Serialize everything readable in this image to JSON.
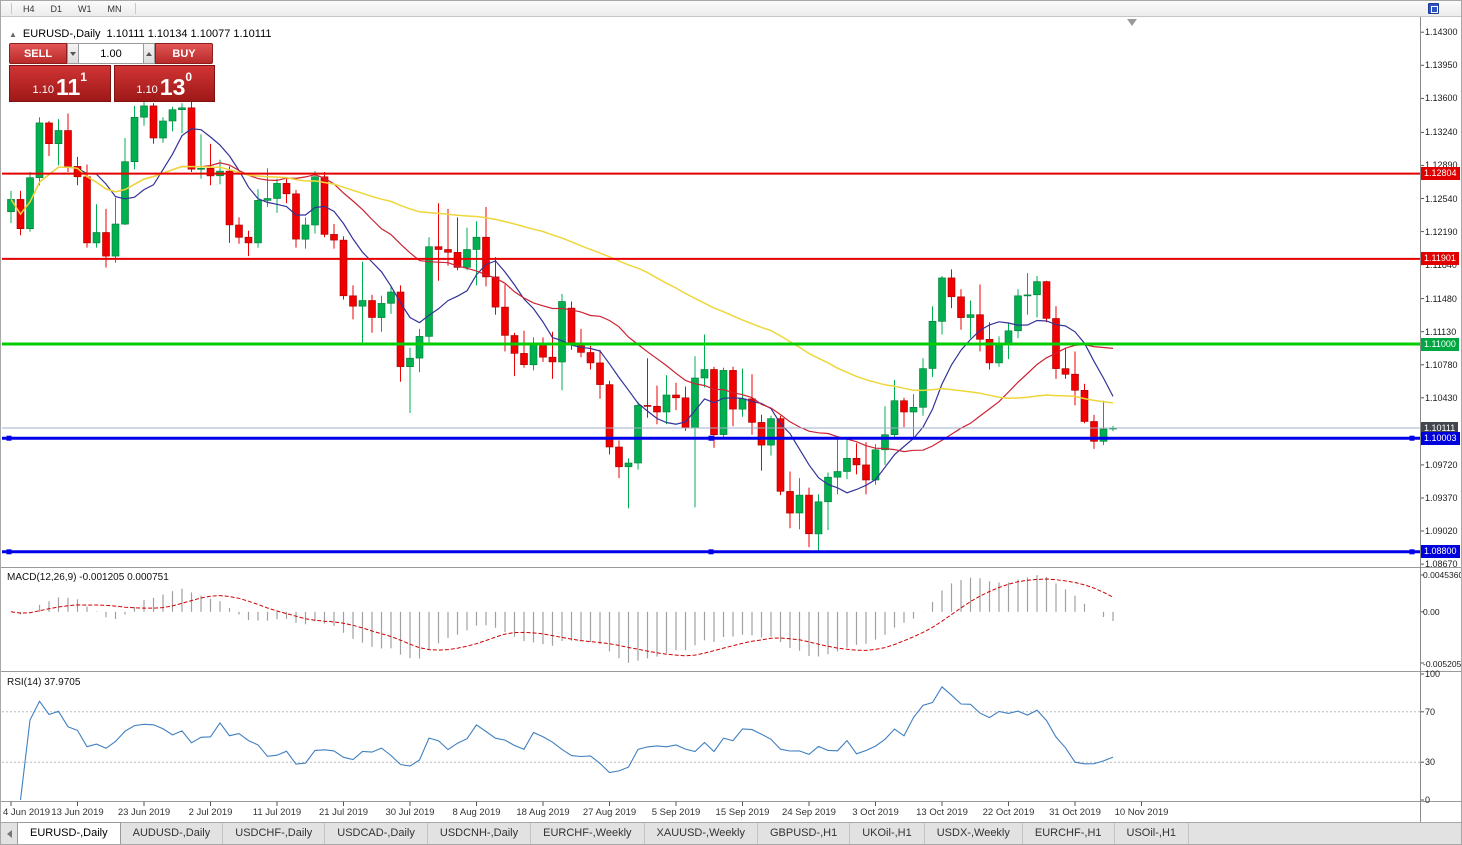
{
  "toolbar": {
    "timeframes": [
      "H4",
      "D1",
      "W1",
      "MN"
    ]
  },
  "chart": {
    "title_symbol": "EURUSD-,Daily",
    "title_ohlc": "1.10111 1.10134 1.10077 1.10111"
  },
  "one_click": {
    "collapse_icon": "▲",
    "sell_label": "SELL",
    "buy_label": "BUY",
    "volume": "1.00",
    "bid_prefix": "1.10",
    "bid_big": "11",
    "bid_pip": "1",
    "ask_prefix": "1.10",
    "ask_big": "13",
    "ask_pip": "0"
  },
  "price_axis": {
    "ticks": [
      "1.14300",
      "1.13950",
      "1.13600",
      "1.13240",
      "1.12890",
      "1.12540",
      "1.12190",
      "1.11840",
      "1.11480",
      "1.11130",
      "1.10780",
      "1.10430",
      "1.10080",
      "1.09720",
      "1.09370",
      "1.09020",
      "1.08670"
    ],
    "tags": [
      {
        "label": "1.12804",
        "price": 1.12804,
        "bg": "#e00000",
        "fg": "#ffffff"
      },
      {
        "label": "1.11901",
        "price": 1.11901,
        "bg": "#e00000",
        "fg": "#ffffff"
      },
      {
        "label": "1.11000",
        "price": 1.11,
        "bg": "#00a843",
        "fg": "#ffffff"
      },
      {
        "label": "1.10111",
        "price": 1.10111,
        "bg": "#42464e",
        "fg": "#ffffff"
      },
      {
        "label": "1.10003",
        "price": 1.10003,
        "bg": "#0000dd",
        "fg": "#ffffff"
      },
      {
        "label": "1.08800",
        "price": 1.088,
        "bg": "#0000dd",
        "fg": "#ffffff"
      }
    ]
  },
  "indicators": {
    "macd": {
      "label": "MACD(12,26,9) -0.001205 0.000751",
      "axis_max": "0.0045360",
      "axis_zero": "0.00",
      "axis_min": "-0.0052050"
    },
    "rsi": {
      "label": "RSI(14) 37.9705",
      "axis": [
        "100",
        "70",
        "30",
        "0"
      ],
      "levels": [
        70,
        30
      ]
    }
  },
  "date_axis": [
    "4 Jun 2019",
    "13 Jun 2019",
    "23 Jun 2019",
    "2 Jul 2019",
    "11 Jul 2019",
    "21 Jul 2019",
    "30 Jul 2019",
    "8 Aug 2019",
    "18 Aug 2019",
    "27 Aug 2019",
    "5 Sep 2019",
    "15 Sep 2019",
    "24 Sep 2019",
    "3 Oct 2019",
    "13 Oct 2019",
    "22 Oct 2019",
    "31 Oct 2019",
    "10 Nov 2019"
  ],
  "tabs": [
    {
      "label": "EURUSD-,Daily",
      "active": true
    },
    {
      "label": "AUDUSD-,Daily",
      "active": false
    },
    {
      "label": "USDCHF-,Daily",
      "active": false
    },
    {
      "label": "USDCAD-,Daily",
      "active": false
    },
    {
      "label": "USDCNH-,Daily",
      "active": false
    },
    {
      "label": "EURCHF-,Weekly",
      "active": false
    },
    {
      "label": "XAUUSD-,Weekly",
      "active": false
    },
    {
      "label": "GBPUSD-,H1",
      "active": false
    },
    {
      "label": "UKOil-,H1",
      "active": false
    },
    {
      "label": "USDX-,Weekly",
      "active": false
    },
    {
      "label": "EURCHF-,H1",
      "active": false
    },
    {
      "label": "USOil-,H1",
      "active": false
    }
  ],
  "chart_data": {
    "type": "candlestick",
    "symbol": "EURUSD-",
    "timeframe": "Daily",
    "title": "EURUSD-,Daily",
    "price_range": [
      1.0865,
      1.1444
    ],
    "bid": 1.10111,
    "last_bar": {
      "open": 1.10111,
      "high": 1.10134,
      "low": 1.10077,
      "close": 1.10111
    },
    "x_labels": [
      "4 Jun 2019",
      "13 Jun 2019",
      "23 Jun 2019",
      "2 Jul 2019",
      "11 Jul 2019",
      "21 Jul 2019",
      "30 Jul 2019",
      "8 Aug 2019",
      "18 Aug 2019",
      "27 Aug 2019",
      "5 Sep 2019",
      "15 Sep 2019",
      "24 Sep 2019",
      "3 Oct 2019",
      "13 Oct 2019",
      "22 Oct 2019",
      "31 Oct 2019",
      "10 Nov 2019"
    ],
    "horizontal_levels": [
      {
        "price": 1.12804,
        "color": "#e40000",
        "width": 2,
        "selected": false
      },
      {
        "price": 1.11901,
        "color": "#e40000",
        "width": 2,
        "selected": false
      },
      {
        "price": 1.11,
        "color": "#00cc00",
        "width": 3,
        "selected": false
      },
      {
        "price": 1.10003,
        "color": "#0000e8",
        "width": 3,
        "selected": true
      },
      {
        "price": 1.088,
        "color": "#0000e8",
        "width": 3,
        "selected": true
      }
    ],
    "ma_fast": 8,
    "ma_mid": 21,
    "ma_slow": 55,
    "macd": {
      "params": "12,26,9",
      "main": -0.001205,
      "signal": 0.000751
    },
    "rsi": {
      "period": 14,
      "value": 37.9705
    },
    "colors": {
      "bull": "#00b050",
      "bull_edge": "#007a36",
      "bear": "#f00000",
      "bear_edge": "#a40000",
      "ma_fast": "#333399",
      "ma_mid": "#cc2233",
      "ma_slow": "#eed73a",
      "macd_hist": "#a0a0a0",
      "macd_signal": "#d00000",
      "rsi": "#4080c0",
      "bid_line": "#9fb0c8"
    },
    "ohlc": [
      [
        1.124,
        1.1262,
        1.1228,
        1.1253
      ],
      [
        1.1253,
        1.1262,
        1.1215,
        1.1222
      ],
      [
        1.1222,
        1.1282,
        1.1219,
        1.1276
      ],
      [
        1.1276,
        1.134,
        1.1268,
        1.1334
      ],
      [
        1.1334,
        1.1336,
        1.1299,
        1.1312
      ],
      [
        1.1312,
        1.1338,
        1.1289,
        1.1326
      ],
      [
        1.1326,
        1.1344,
        1.1282,
        1.1288
      ],
      [
        1.1288,
        1.1298,
        1.1268,
        1.1277
      ],
      [
        1.1277,
        1.129,
        1.1202,
        1.1207
      ],
      [
        1.1207,
        1.1248,
        1.1202,
        1.1218
      ],
      [
        1.1218,
        1.1243,
        1.1181,
        1.1193
      ],
      [
        1.1193,
        1.1255,
        1.1186,
        1.1227
      ],
      [
        1.1227,
        1.1318,
        1.1226,
        1.1293
      ],
      [
        1.1293,
        1.1352,
        1.1285,
        1.134
      ],
      [
        1.134,
        1.1358,
        1.1331,
        1.1352
      ],
      [
        1.1352,
        1.1355,
        1.1312,
        1.1318
      ],
      [
        1.1318,
        1.134,
        1.1313,
        1.1336
      ],
      [
        1.1336,
        1.1351,
        1.1325,
        1.1348
      ],
      [
        1.1348,
        1.1355,
        1.1323,
        1.135
      ],
      [
        1.135,
        1.1358,
        1.1282,
        1.1285
      ],
      [
        1.1285,
        1.1322,
        1.1275,
        1.1286
      ],
      [
        1.1286,
        1.1312,
        1.1268,
        1.1278
      ],
      [
        1.1278,
        1.1295,
        1.1269,
        1.1283
      ],
      [
        1.1283,
        1.1288,
        1.1207,
        1.1226
      ],
      [
        1.1226,
        1.1234,
        1.1206,
        1.1213
      ],
      [
        1.1213,
        1.122,
        1.1193,
        1.1207
      ],
      [
        1.1207,
        1.1264,
        1.1202,
        1.1252
      ],
      [
        1.1252,
        1.1286,
        1.1245,
        1.1254
      ],
      [
        1.1254,
        1.1275,
        1.1239,
        1.127
      ],
      [
        1.127,
        1.1276,
        1.1249,
        1.1259
      ],
      [
        1.1259,
        1.1263,
        1.1202,
        1.1211
      ],
      [
        1.1211,
        1.1234,
        1.1201,
        1.1226
      ],
      [
        1.1226,
        1.1283,
        1.1217,
        1.1277
      ],
      [
        1.1277,
        1.1282,
        1.1213,
        1.1216
      ],
      [
        1.1216,
        1.1227,
        1.1201,
        1.121
      ],
      [
        1.121,
        1.1214,
        1.1147,
        1.1151
      ],
      [
        1.1151,
        1.1162,
        1.1126,
        1.114
      ],
      [
        1.114,
        1.1187,
        1.1101,
        1.1146
      ],
      [
        1.1146,
        1.1152,
        1.1112,
        1.1128
      ],
      [
        1.1128,
        1.1151,
        1.1113,
        1.1143
      ],
      [
        1.1143,
        1.1162,
        1.1132,
        1.1155
      ],
      [
        1.1155,
        1.1162,
        1.106,
        1.1076
      ],
      [
        1.1076,
        1.1096,
        1.1027,
        1.1085
      ],
      [
        1.1085,
        1.1116,
        1.107,
        1.1108
      ],
      [
        1.1108,
        1.1213,
        1.1101,
        1.1203
      ],
      [
        1.1203,
        1.1249,
        1.1167,
        1.12
      ],
      [
        1.12,
        1.1243,
        1.1183,
        1.1197
      ],
      [
        1.1197,
        1.1234,
        1.1178,
        1.1181
      ],
      [
        1.1181,
        1.1223,
        1.1178,
        1.12
      ],
      [
        1.12,
        1.123,
        1.1162,
        1.1213
      ],
      [
        1.1213,
        1.1245,
        1.1161,
        1.1171
      ],
      [
        1.1171,
        1.1192,
        1.1131,
        1.1139
      ],
      [
        1.1139,
        1.1163,
        1.1092,
        1.1109
      ],
      [
        1.1109,
        1.1112,
        1.1066,
        1.109
      ],
      [
        1.109,
        1.1114,
        1.1075,
        1.1078
      ],
      [
        1.1078,
        1.1107,
        1.1072,
        1.11
      ],
      [
        1.11,
        1.1107,
        1.1081,
        1.1086
      ],
      [
        1.1086,
        1.1113,
        1.1063,
        1.1081
      ],
      [
        1.1081,
        1.1153,
        1.1051,
        1.1145
      ],
      [
        1.1138,
        1.1145,
        1.1094,
        1.1101
      ],
      [
        1.1101,
        1.1116,
        1.1086,
        1.1091
      ],
      [
        1.1091,
        1.1098,
        1.1073,
        1.108
      ],
      [
        1.108,
        1.1094,
        1.1042,
        1.1057
      ],
      [
        1.1057,
        1.1061,
        1.0983,
        1.0991
      ],
      [
        1.0991,
        1.0998,
        1.0958,
        1.097
      ],
      [
        1.097,
        1.0979,
        1.0926,
        1.0974
      ],
      [
        1.0974,
        1.1039,
        1.0967,
        1.1035
      ],
      [
        1.1035,
        1.1085,
        1.1022,
        1.1034
      ],
      [
        1.1034,
        1.1056,
        1.1015,
        1.1028
      ],
      [
        1.1028,
        1.1067,
        1.1015,
        1.1046
      ],
      [
        1.1046,
        1.1059,
        1.103,
        1.1043
      ],
      [
        1.1043,
        1.1055,
        1.1008,
        1.1011
      ],
      [
        1.1011,
        1.1087,
        1.0927,
        1.1064
      ],
      [
        1.1064,
        1.111,
        1.1054,
        1.1073
      ],
      [
        1.1073,
        1.1076,
        1.099,
        1.1004
      ],
      [
        1.1004,
        1.1075,
        1.0999,
        1.1072
      ],
      [
        1.1072,
        1.1076,
        1.1013,
        1.1031
      ],
      [
        1.1031,
        1.1074,
        1.1023,
        1.1042
      ],
      [
        1.1042,
        1.1068,
        1.1004,
        1.1017
      ],
      [
        1.1017,
        1.1025,
        1.0966,
        1.0993
      ],
      [
        1.0993,
        1.1024,
        1.0982,
        1.1021
      ],
      [
        1.1021,
        1.1024,
        1.094,
        1.0944
      ],
      [
        1.0944,
        1.0965,
        1.0905,
        1.0921
      ],
      [
        1.0921,
        1.0958,
        1.0904,
        1.094
      ],
      [
        1.094,
        1.0948,
        1.0885,
        1.0899
      ],
      [
        1.0899,
        1.0941,
        1.0879,
        1.0933
      ],
      [
        1.0933,
        1.0964,
        1.0903,
        1.0959
      ],
      [
        1.0959,
        1.0999,
        1.0941,
        1.0965
      ],
      [
        1.0965,
        1.0999,
        1.0957,
        1.0979
      ],
      [
        1.0979,
        1.0995,
        1.0962,
        1.0972
      ],
      [
        1.0972,
        1.0996,
        1.0941,
        1.0956
      ],
      [
        1.0956,
        1.0994,
        1.0951,
        1.0988
      ],
      [
        1.0988,
        1.1034,
        1.0972,
        1.1004
      ],
      [
        1.1004,
        1.1062,
        1.1002,
        1.104
      ],
      [
        1.104,
        1.1043,
        1.1012,
        1.1028
      ],
      [
        1.1028,
        1.1047,
        1.1001,
        1.1033
      ],
      [
        1.1033,
        1.1085,
        1.1024,
        1.1074
      ],
      [
        1.1074,
        1.114,
        1.1065,
        1.1124
      ],
      [
        1.1124,
        1.1172,
        1.111,
        1.117
      ],
      [
        1.117,
        1.1179,
        1.1138,
        1.115
      ],
      [
        1.115,
        1.1158,
        1.1115,
        1.1128
      ],
      [
        1.1128,
        1.1146,
        1.1106,
        1.1131
      ],
      [
        1.1131,
        1.1163,
        1.1092,
        1.1105
      ],
      [
        1.1105,
        1.1123,
        1.1073,
        1.108
      ],
      [
        1.108,
        1.1108,
        1.1076,
        1.11
      ],
      [
        1.11,
        1.1122,
        1.1084,
        1.1114
      ],
      [
        1.1114,
        1.1158,
        1.1106,
        1.1151
      ],
      [
        1.1151,
        1.1175,
        1.1131,
        1.1152
      ],
      [
        1.1152,
        1.1172,
        1.1128,
        1.1166
      ],
      [
        1.1166,
        1.1167,
        1.1123,
        1.1127
      ],
      [
        1.1127,
        1.114,
        1.1063,
        1.1074
      ],
      [
        1.1074,
        1.1096,
        1.1063,
        1.1068
      ],
      [
        1.1068,
        1.1092,
        1.1035,
        1.1051
      ],
      [
        1.1051,
        1.1058,
        1.1016,
        1.1018
      ],
      [
        1.1018,
        1.1025,
        1.0989,
        1.0997
      ],
      [
        1.0997,
        1.104,
        1.0993,
        1.101
      ],
      [
        1.10111,
        1.10134,
        1.10077,
        1.10111
      ]
    ]
  }
}
